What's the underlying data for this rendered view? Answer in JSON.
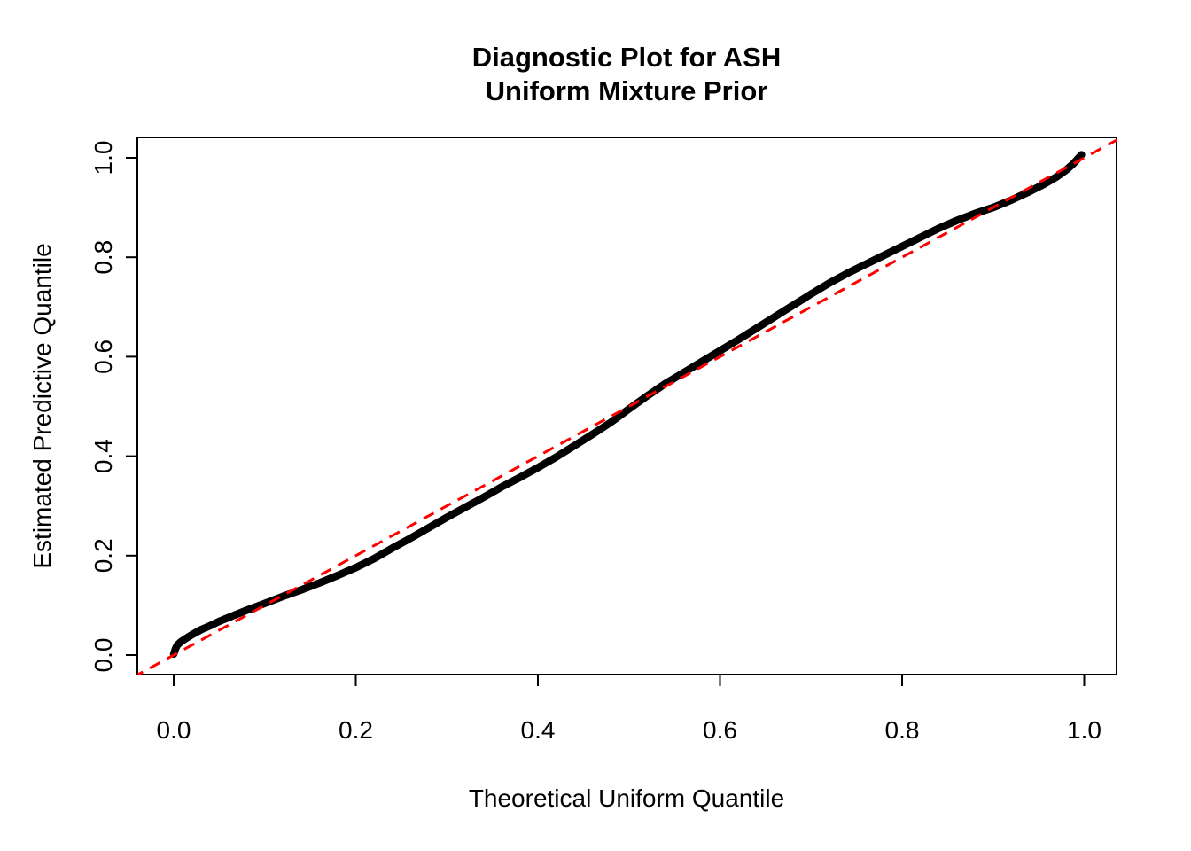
{
  "title": {
    "line1": "Diagnostic Plot for ASH",
    "line2": "Uniform Mixture Prior"
  },
  "axes": {
    "x": {
      "label": "Theoretical Uniform Quantile",
      "tick_labels": [
        "0.0",
        "0.2",
        "0.4",
        "0.6",
        "0.8",
        "1.0"
      ]
    },
    "y": {
      "label": "Estimated Predictive Quantile",
      "tick_labels": [
        "0.0",
        "0.2",
        "0.4",
        "0.6",
        "0.8",
        "1.0"
      ]
    }
  },
  "colors": {
    "background": "#FFFFFF",
    "axis": "#000000",
    "curve": "#000000",
    "reference_line": "#FF0000"
  },
  "chart_data": {
    "type": "line",
    "title": "Diagnostic Plot for ASH\nUniform Mixture Prior",
    "xlabel": "Theoretical Uniform Quantile",
    "ylabel": "Estimated Predictive Quantile",
    "xlim": [
      -0.04,
      1.04
    ],
    "ylim": [
      -0.04,
      1.04
    ],
    "x_ticks": [
      0.0,
      0.2,
      0.4,
      0.6,
      0.8,
      1.0
    ],
    "y_ticks": [
      0.0,
      0.2,
      0.4,
      0.6,
      0.8,
      1.0
    ],
    "grid": false,
    "legend": "none",
    "series": [
      {
        "name": "estimated-vs-theoretical-quantile-curve",
        "type": "line",
        "style": "solid",
        "color": "#000000",
        "width": 8.5,
        "points": [
          [
            0.0,
            0.002
          ],
          [
            0.002,
            0.013
          ],
          [
            0.004,
            0.02
          ],
          [
            0.008,
            0.027
          ],
          [
            0.013,
            0.033
          ],
          [
            0.02,
            0.041
          ],
          [
            0.03,
            0.051
          ],
          [
            0.04,
            0.059
          ],
          [
            0.05,
            0.068
          ],
          [
            0.065,
            0.079
          ],
          [
            0.08,
            0.09
          ],
          [
            0.1,
            0.104
          ],
          [
            0.12,
            0.118
          ],
          [
            0.14,
            0.131
          ],
          [
            0.16,
            0.145
          ],
          [
            0.18,
            0.16
          ],
          [
            0.2,
            0.176
          ],
          [
            0.22,
            0.194
          ],
          [
            0.24,
            0.215
          ],
          [
            0.26,
            0.235
          ],
          [
            0.28,
            0.256
          ],
          [
            0.3,
            0.277
          ],
          [
            0.32,
            0.297
          ],
          [
            0.34,
            0.317
          ],
          [
            0.36,
            0.338
          ],
          [
            0.38,
            0.357
          ],
          [
            0.4,
            0.377
          ],
          [
            0.42,
            0.398
          ],
          [
            0.44,
            0.421
          ],
          [
            0.46,
            0.444
          ],
          [
            0.48,
            0.468
          ],
          [
            0.5,
            0.495
          ],
          [
            0.52,
            0.521
          ],
          [
            0.54,
            0.546
          ],
          [
            0.56,
            0.568
          ],
          [
            0.58,
            0.59
          ],
          [
            0.6,
            0.612
          ],
          [
            0.62,
            0.634
          ],
          [
            0.64,
            0.657
          ],
          [
            0.66,
            0.68
          ],
          [
            0.68,
            0.703
          ],
          [
            0.7,
            0.726
          ],
          [
            0.72,
            0.748
          ],
          [
            0.74,
            0.768
          ],
          [
            0.76,
            0.786
          ],
          [
            0.78,
            0.804
          ],
          [
            0.8,
            0.822
          ],
          [
            0.82,
            0.84
          ],
          [
            0.84,
            0.858
          ],
          [
            0.86,
            0.874
          ],
          [
            0.88,
            0.888
          ],
          [
            0.9,
            0.9
          ],
          [
            0.92,
            0.915
          ],
          [
            0.94,
            0.932
          ],
          [
            0.955,
            0.946
          ],
          [
            0.97,
            0.962
          ],
          [
            0.98,
            0.975
          ],
          [
            0.988,
            0.988
          ],
          [
            0.994,
            1.0
          ],
          [
            0.997,
            1.006
          ]
        ]
      },
      {
        "name": "reference-diagonal",
        "type": "line",
        "style": "dashed",
        "color": "#FF0000",
        "width": 3,
        "points": [
          [
            -0.045,
            -0.045
          ],
          [
            1.045,
            1.045
          ]
        ]
      }
    ]
  }
}
